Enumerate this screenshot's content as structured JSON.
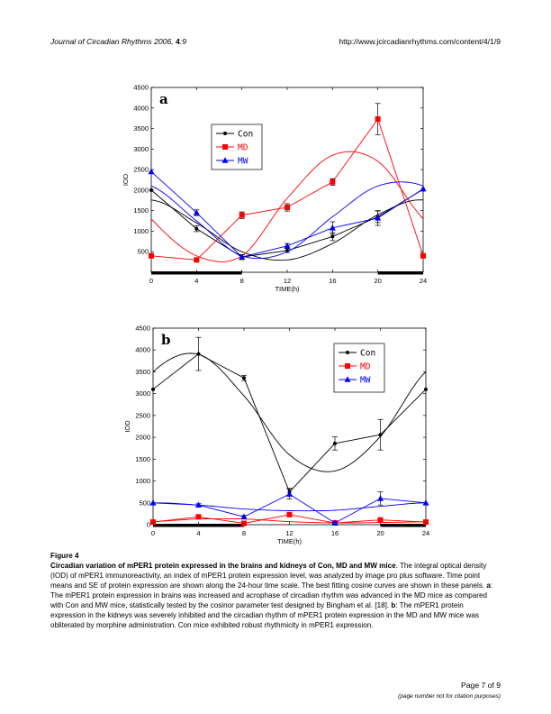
{
  "header": {
    "journal": "Journal of Circadian Rhythms",
    "year": "2006,",
    "volume": "4",
    "article": ":9",
    "url": "http://www.jcircadianrhythms.com/content/4/1/9"
  },
  "chart_data": [
    {
      "type": "line",
      "panel_label": "a",
      "xlabel": "TIME(h)",
      "ylabel": "IOD",
      "x": [
        0,
        4,
        8,
        12,
        16,
        20,
        24
      ],
      "xticks": [
        0,
        4,
        8,
        12,
        16,
        20,
        24
      ],
      "xlim": [
        0,
        24
      ],
      "yticks": [
        500,
        1000,
        1500,
        2000,
        2500,
        3000,
        3500,
        4000,
        4500
      ],
      "ylim": [
        0,
        4500
      ],
      "legend_placement": "upper-center",
      "series": [
        {
          "name": "Con",
          "color": "#000000",
          "marker": "dot",
          "values": [
            2000,
            1060,
            370,
            530,
            870,
            1350,
            2020
          ],
          "errors": [
            0,
            70,
            60,
            50,
            100,
            140,
            0
          ],
          "fit": [
            1760,
            1200,
            500,
            300,
            700,
            1400,
            1760
          ]
        },
        {
          "name": "MD",
          "color": "#ff0000",
          "marker": "square",
          "values": [
            400,
            300,
            1390,
            1580,
            2200,
            3730,
            400
          ],
          "errors": [
            0,
            50,
            80,
            90,
            80,
            380,
            0
          ],
          "fit": [
            1300,
            400,
            400,
            1800,
            2850,
            2700,
            1300
          ]
        },
        {
          "name": "MW",
          "color": "#0000ff",
          "marker": "triangle",
          "values": [
            2450,
            1450,
            370,
            640,
            1080,
            1320,
            2030
          ],
          "errors": [
            0,
            70,
            60,
            60,
            150,
            180,
            0
          ],
          "fit": [
            2100,
            1250,
            400,
            500,
            1350,
            2100,
            2450
          ]
        }
      ]
    },
    {
      "type": "line",
      "panel_label": "b",
      "xlabel": "TIME(h)",
      "ylabel": "IOD",
      "x": [
        0,
        4,
        8,
        12,
        16,
        20,
        24
      ],
      "xticks": [
        0,
        4,
        8,
        12,
        16,
        20,
        24
      ],
      "xlim": [
        0,
        24
      ],
      "yticks": [
        0,
        500,
        1000,
        1500,
        2000,
        2500,
        3000,
        3500,
        4000,
        4500
      ],
      "ylim": [
        0,
        4500
      ],
      "legend_placement": "upper-right",
      "series": [
        {
          "name": "Con",
          "color": "#000000",
          "marker": "dot",
          "values": [
            3100,
            3910,
            3360,
            750,
            1860,
            2060,
            3100
          ],
          "errors": [
            0,
            380,
            60,
            80,
            150,
            350,
            0
          ],
          "fit": [
            3500,
            3900,
            2950,
            1600,
            1230,
            2020,
            3500
          ]
        },
        {
          "name": "MD",
          "color": "#ff0000",
          "marker": "square",
          "values": [
            60,
            180,
            30,
            230,
            40,
            110,
            60
          ],
          "errors": [
            0,
            20,
            10,
            30,
            10,
            20,
            0
          ],
          "fit": [
            70,
            130,
            130,
            70,
            40,
            50,
            70
          ]
        },
        {
          "name": "MW",
          "color": "#0000ff",
          "marker": "triangle",
          "values": [
            500,
            450,
            180,
            700,
            40,
            600,
            500
          ],
          "errors": [
            0,
            30,
            30,
            110,
            20,
            150,
            0
          ],
          "fit": [
            500,
            450,
            360,
            320,
            330,
            420,
            500
          ]
        }
      ]
    }
  ],
  "caption": {
    "figure_label": "Figure 4",
    "title": "Circadian variation of mPER1 protein expressed in the brains and kidneys of Con, MD and MW mice",
    "body_1": ". The integral optical density (IOD) of mPER1 immunoreactivity, an index of mPER1 protein expression level, was analyzed by image pro plus software. Time point means and SE of protein expression are shown along the 24-hour time scale. The best fitting cosine curves are shown in these panels.",
    "a_label": "a",
    "a_text": ": The mPER1 protein expression in brains was increased and acrophase of circadian rhythm was advanced in the MD mice as compared with Con and MW mice, statistically tested by the cosinor parameter test designed by Bingham et al. [18].",
    "b_label": "b",
    "b_text": ": The mPER1 protein expression in the kidneys was severely inhibited and the circadian rhythm of mPER1 protein expression in the MD and MW mice was obliterated by morphine administration. Con mice exhibited robust rhythmicity in mPER1 expression."
  },
  "footer": {
    "page": "Page 7 of 9",
    "note": "(page number not for citation purposes)"
  }
}
